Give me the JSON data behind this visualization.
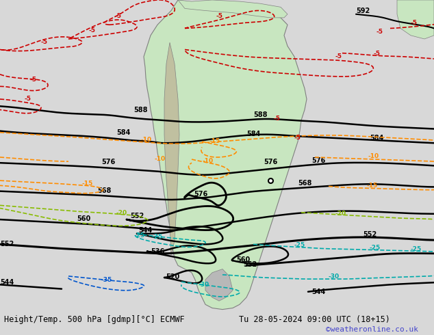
{
  "title_left": "Height/Temp. 500 hPa [gdmp][°C] ECMWF",
  "title_right": "Tu 28-05-2024 09:00 UTC (18+15)",
  "watermark": "©weatheronline.co.uk",
  "background_color": "#d8d8d8",
  "land_color": "#c8e6c0",
  "land_color2": "#b8d8b0",
  "sea_color": "#e8e8e8",
  "figsize": [
    6.34,
    4.9
  ],
  "dpi": 100,
  "bottom_bar_color": "#ffffff",
  "title_fontsize": 9,
  "watermark_color": "#4444cc"
}
